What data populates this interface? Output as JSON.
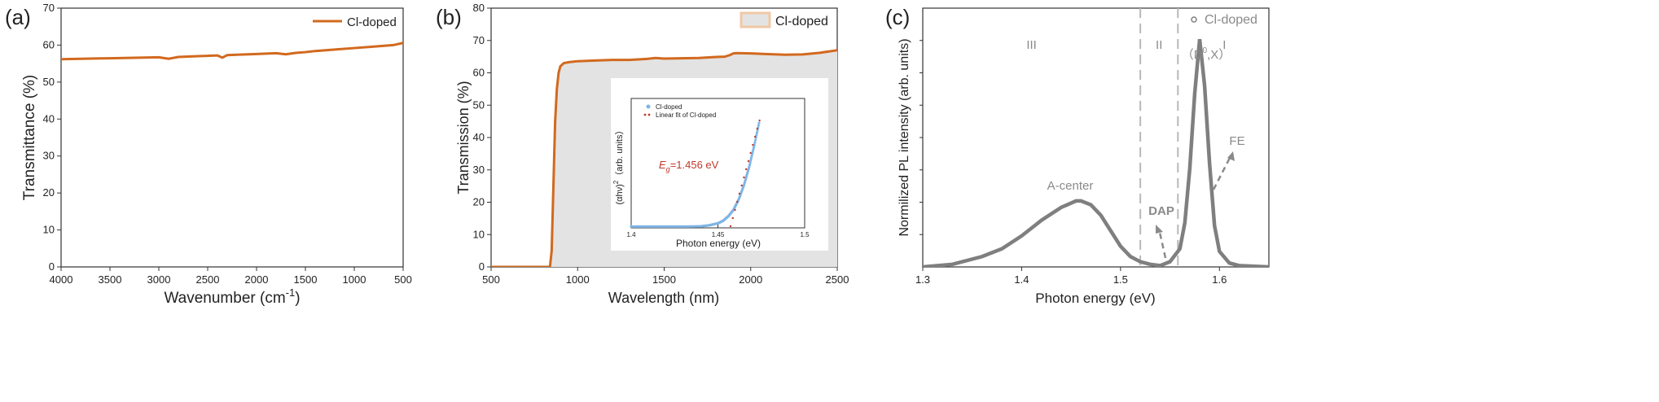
{
  "colors": {
    "orange": "#d2691e",
    "gray_fill": "#e3e3e3",
    "gray_line": "#7f7f7f",
    "dash": "#b8b8b8",
    "inset_blue": "#7fb4e6",
    "inset_red": "#c0392b",
    "annotation_gray": "#8a8a8a"
  },
  "chart_data": [
    {
      "type": "line",
      "panel_label": "(a)",
      "xlabel": "Wavenumber (cm",
      "xlabel_sup": "-1",
      "xlabel_suffix": ")",
      "ylabel": "Transmittance (%)",
      "xlim": [
        4000,
        500
      ],
      "ylim": [
        0,
        70
      ],
      "xticks": [
        4000,
        3500,
        3000,
        2500,
        2000,
        1500,
        1000,
        500
      ],
      "yticks": [
        0,
        10,
        20,
        30,
        40,
        50,
        60,
        70
      ],
      "legend": "Cl-doped",
      "legend_position": "top-right",
      "series": [
        {
          "name": "Cl-doped",
          "x": [
            4000,
            3800,
            3600,
            3400,
            3200,
            3000,
            2900,
            2800,
            2600,
            2400,
            2350,
            2300,
            2200,
            2000,
            1800,
            1700,
            1600,
            1500,
            1400,
            1200,
            1000,
            800,
            600,
            500
          ],
          "y": [
            56.2,
            56.3,
            56.4,
            56.5,
            56.6,
            56.7,
            56.3,
            56.8,
            57.0,
            57.2,
            56.6,
            57.3,
            57.4,
            57.6,
            57.8,
            57.5,
            57.9,
            58.1,
            58.4,
            58.8,
            59.2,
            59.6,
            60.0,
            60.6
          ]
        }
      ]
    },
    {
      "type": "area",
      "panel_label": "(b)",
      "xlabel": "Wavelength (nm)",
      "ylabel": "Transmission (%)",
      "xlim": [
        500,
        2500
      ],
      "ylim": [
        0,
        80
      ],
      "xticks": [
        500,
        1000,
        1500,
        2000,
        2500
      ],
      "yticks": [
        0,
        10,
        20,
        30,
        40,
        50,
        60,
        70,
        80
      ],
      "legend": "Cl-doped",
      "legend_position": "top-right",
      "series": [
        {
          "name": "Cl-doped",
          "x": [
            500,
            700,
            840,
            850,
            860,
            870,
            880,
            890,
            900,
            920,
            950,
            1000,
            1100,
            1200,
            1300,
            1400,
            1450,
            1500,
            1600,
            1700,
            1800,
            1850,
            1880,
            1900,
            1920,
            2000,
            2100,
            2200,
            2300,
            2400,
            2500
          ],
          "y": [
            0,
            0,
            0,
            5,
            25,
            45,
            55,
            60,
            62,
            63,
            63.3,
            63.6,
            63.8,
            64.0,
            64.0,
            64.3,
            64.6,
            64.4,
            64.5,
            64.6,
            64.9,
            65.0,
            65.5,
            66.0,
            66.1,
            66.0,
            65.8,
            65.6,
            65.7,
            66.2,
            67.0
          ]
        }
      ],
      "inset": {
        "type": "scatter",
        "xlabel": "Photon energy (eV)",
        "ylabel": "(αhν)",
        "ylabel_sup": "2",
        "ylabel_suffix": "（arb. units）",
        "xlim": [
          1.4,
          1.5
        ],
        "xticks": [
          1.4,
          1.45,
          1.5
        ],
        "legend": [
          "Cl-doped",
          "Linear fit of Cl-doped"
        ],
        "annotation": {
          "prefix": "E",
          "subscript": "g",
          "text": "=1.456 eV"
        },
        "series": [
          {
            "name": "Cl-doped",
            "x": [
              1.4,
              1.41,
              1.42,
              1.43,
              1.44,
              1.445,
              1.45,
              1.453,
              1.456,
              1.459,
              1.462,
              1.465,
              1.468,
              1.471,
              1.474
            ],
            "y": [
              0.01,
              0.01,
              0.01,
              0.01,
              0.012,
              0.02,
              0.035,
              0.055,
              0.09,
              0.14,
              0.22,
              0.33,
              0.47,
              0.64,
              0.83
            ]
          },
          {
            "name": "Linear fit of Cl-doped",
            "x": [
              1.456,
              1.474
            ],
            "y": [
              -0.05,
              0.83
            ]
          }
        ]
      }
    },
    {
      "type": "scatter",
      "panel_label": "(c)",
      "xlabel": "Photon energy (eV)",
      "ylabel": "Normilized PL intensity (arb. units)",
      "xlim": [
        1.3,
        1.65
      ],
      "xticks": [
        1.3,
        1.4,
        1.5,
        1.6
      ],
      "legend": "Cl-doped",
      "legend_position": "top-right",
      "regions": [
        {
          "label": "III",
          "x": 1.41
        },
        {
          "label": "II",
          "x": 1.539
        },
        {
          "label": "I",
          "x": 1.605
        }
      ],
      "dashed_lines": [
        1.52,
        1.558
      ],
      "annotations": [
        "A-center",
        "DAP",
        "FE",
        "（D",
        "0",
        ",X）"
      ],
      "series": [
        {
          "name": "Cl-doped",
          "x": [
            1.3,
            1.33,
            1.36,
            1.38,
            1.4,
            1.42,
            1.44,
            1.455,
            1.46,
            1.47,
            1.48,
            1.49,
            1.5,
            1.51,
            1.52,
            1.53,
            1.54,
            1.55,
            1.56,
            1.565,
            1.57,
            1.575,
            1.58,
            1.585,
            1.59,
            1.595,
            1.6,
            1.61,
            1.62,
            1.65
          ],
          "y": [
            0.0,
            0.01,
            0.04,
            0.07,
            0.12,
            0.18,
            0.23,
            0.255,
            0.255,
            0.24,
            0.2,
            0.14,
            0.08,
            0.04,
            0.02,
            0.01,
            0.005,
            0.02,
            0.07,
            0.17,
            0.38,
            0.67,
            0.88,
            0.7,
            0.4,
            0.16,
            0.06,
            0.015,
            0.005,
            0.0
          ]
        }
      ]
    }
  ]
}
